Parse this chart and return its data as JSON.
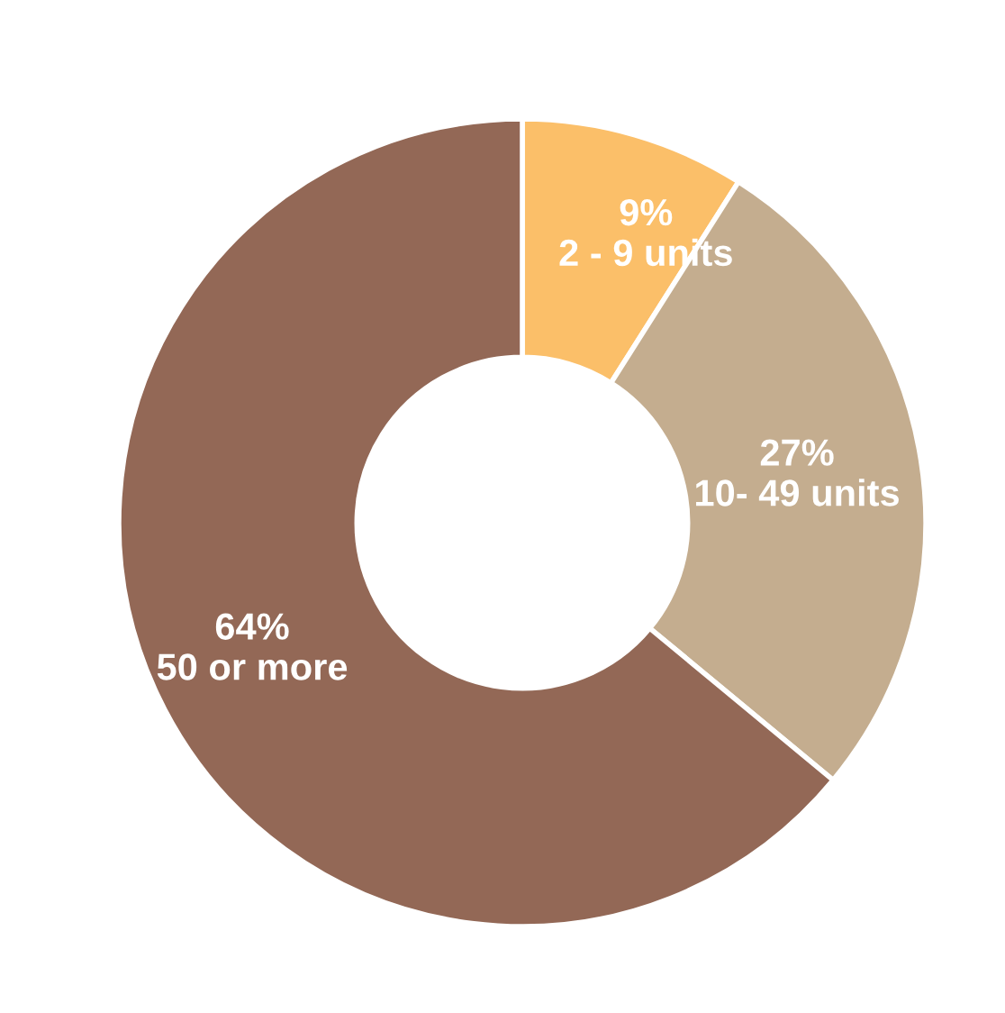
{
  "chart_data": {
    "type": "donut",
    "categories": [
      "2 - 9 units",
      "10- 49 units",
      "50 or more"
    ],
    "values": [
      9,
      27,
      64
    ],
    "colors": [
      "#fbbf69",
      "#c4ad8f",
      "#936856"
    ],
    "value_labels": [
      "9%",
      "27%",
      "64%"
    ],
    "legend": false
  }
}
